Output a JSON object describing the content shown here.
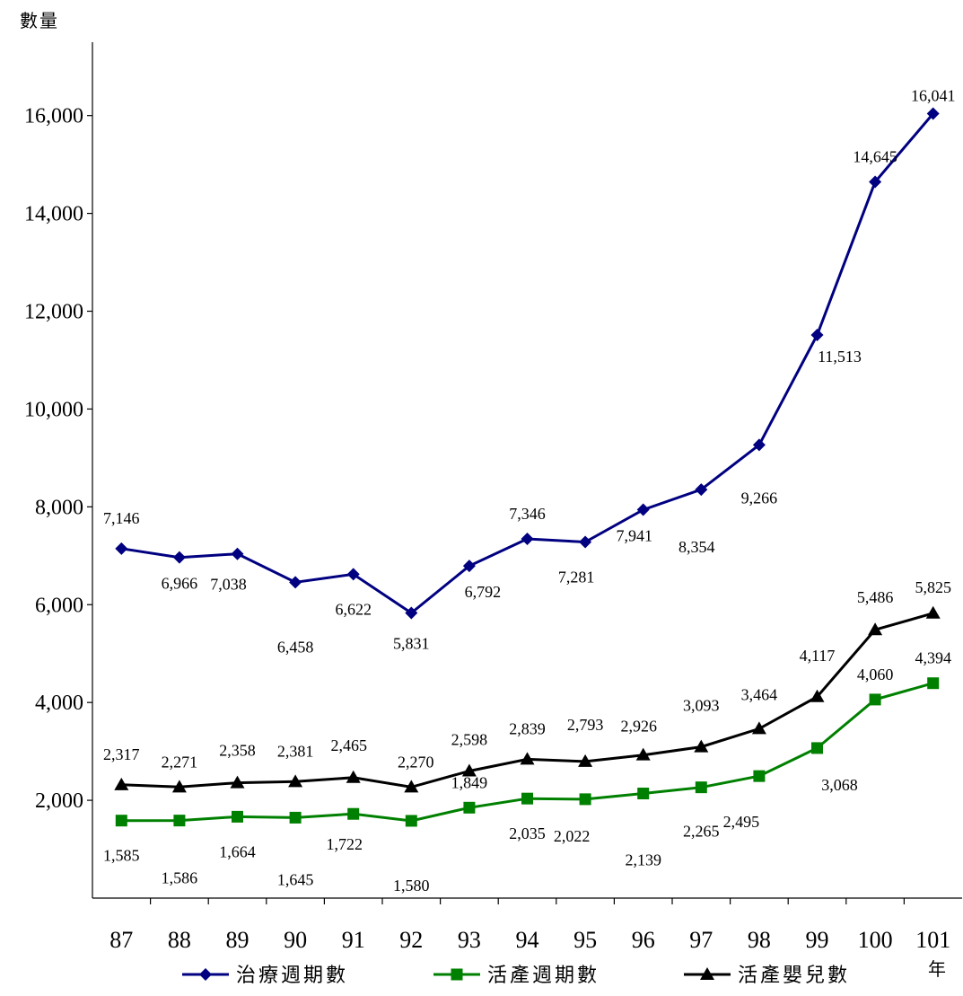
{
  "chart_data": {
    "type": "line",
    "ylabel": "數量",
    "xlabel": "年",
    "categories": [
      "87",
      "88",
      "89",
      "90",
      "91",
      "92",
      "93",
      "94",
      "95",
      "96",
      "97",
      "98",
      "99",
      "100",
      "101"
    ],
    "ylim": [
      0,
      17500
    ],
    "yticks": [
      2000,
      4000,
      6000,
      8000,
      10000,
      12000,
      14000,
      16000
    ],
    "ytick_labels": [
      "2,000",
      "4,000",
      "6,000",
      "8,000",
      "10,000",
      "12,000",
      "14,000",
      "16,000"
    ],
    "grid": false,
    "legend_position": "bottom",
    "series": [
      {
        "name": "治療週期數",
        "color": "#000080",
        "marker": "diamond",
        "values": [
          7146,
          6966,
          7038,
          6458,
          6622,
          5831,
          6792,
          7346,
          7281,
          7941,
          8354,
          9266,
          11513,
          14645,
          16041
        ],
        "labels": [
          "7,146",
          "6,966",
          "7,038",
          "6,458",
          "6,622",
          "5,831",
          "6,792",
          "7,346",
          "7,281",
          "7,941",
          "8,354",
          "9,266",
          "11,513",
          "14,645",
          "16,041"
        ]
      },
      {
        "name": "活產週期數",
        "color": "#008000",
        "marker": "square",
        "values": [
          1585,
          1586,
          1664,
          1645,
          1722,
          1580,
          1849,
          2035,
          2022,
          2139,
          2265,
          2495,
          3068,
          4060,
          4394
        ],
        "labels": [
          "1,585",
          "1,586",
          "1,664",
          "1,645",
          "1,722",
          "1,580",
          "1,849",
          "2,035",
          "2,022",
          "2,139",
          "2,265",
          "2,495",
          "3,068",
          "4,060",
          "4,394"
        ]
      },
      {
        "name": "活產嬰兒數",
        "color": "#000000",
        "marker": "triangle",
        "values": [
          2317,
          2271,
          2358,
          2381,
          2465,
          2270,
          2598,
          2839,
          2793,
          2926,
          3093,
          3464,
          4117,
          5486,
          5825
        ],
        "labels": [
          "2,317",
          "2,271",
          "2,358",
          "2,381",
          "2,465",
          "2,270",
          "2,598",
          "2,839",
          "2,793",
          "2,926",
          "3,093",
          "3,464",
          "4,117",
          "5,486",
          "5,825"
        ]
      }
    ]
  }
}
